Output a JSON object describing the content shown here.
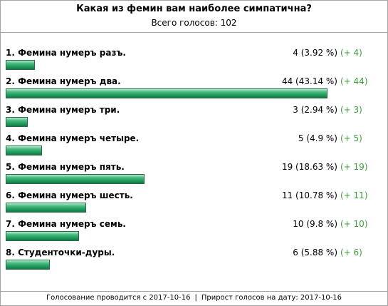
{
  "poll": {
    "title": "Какая из фемин вам наиболее симпатична?",
    "total_label": "Всего голосов:",
    "total_value": "102",
    "options": [
      {
        "label": "1. Фемина нумеръ разъ.",
        "votes": 4,
        "percent": 3.92,
        "stats": "4 (3.92 %)",
        "delta": "(+ 4)"
      },
      {
        "label": "2. Фемина нумеръ два.",
        "votes": 44,
        "percent": 43.14,
        "stats": "44 (43.14 %)",
        "delta": "(+ 44)"
      },
      {
        "label": "3. Фемина нумеръ три.",
        "votes": 3,
        "percent": 2.94,
        "stats": "3 (2.94 %)",
        "delta": "(+ 3)"
      },
      {
        "label": "4. Фемина нумеръ четыре.",
        "votes": 5,
        "percent": 4.9,
        "stats": "5 (4.9 %)",
        "delta": "(+ 5)"
      },
      {
        "label": "5. Фемина нумеръ пять.",
        "votes": 19,
        "percent": 18.63,
        "stats": "19 (18.63 %)",
        "delta": "(+ 19)"
      },
      {
        "label": "6. Фемина нумеръ шесть.",
        "votes": 11,
        "percent": 10.78,
        "stats": "11 (10.78 %)",
        "delta": "(+ 11)"
      },
      {
        "label": "7. Фемина нумеръ семь.",
        "votes": 10,
        "percent": 9.8,
        "stats": "10 (9.8 %)",
        "delta": "(+ 10)"
      },
      {
        "label": "8. Студенточки-дуры.",
        "votes": 6,
        "percent": 5.88,
        "stats": "6 (5.88 %)",
        "delta": "(+ 6)"
      }
    ],
    "footer": {
      "started_text": "Голосование проводится с 2017-10-16",
      "separator": "|",
      "growth_text": "Прирост голосов на дату: 2017-10-16"
    }
  },
  "colors": {
    "border": "#a6a6a6",
    "bar_green": "#1f9a5c",
    "delta_green": "#3aa13a"
  }
}
